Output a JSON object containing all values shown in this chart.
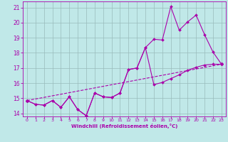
{
  "bg_color": "#c0e8e8",
  "line_color": "#aa00aa",
  "grid_color": "#99bbbb",
  "xlim": [
    -0.5,
    23.5
  ],
  "ylim": [
    13.8,
    21.4
  ],
  "xticks": [
    0,
    1,
    2,
    3,
    4,
    5,
    6,
    7,
    8,
    9,
    10,
    11,
    12,
    13,
    14,
    15,
    16,
    17,
    18,
    19,
    20,
    21,
    22,
    23
  ],
  "yticks": [
    14,
    15,
    16,
    17,
    18,
    19,
    20,
    21
  ],
  "xlabel": "Windchill (Refroidissement éolien,°C)",
  "line1_x": [
    0,
    1,
    2,
    3,
    4,
    5,
    6,
    7,
    8,
    9,
    10,
    11,
    12,
    13,
    14,
    15,
    16,
    17,
    18,
    19,
    20,
    21,
    22,
    23
  ],
  "line1_y": [
    14.85,
    14.6,
    14.55,
    14.85,
    14.4,
    15.1,
    14.25,
    13.85,
    15.35,
    15.1,
    15.05,
    15.35,
    16.9,
    17.0,
    18.35,
    18.9,
    18.85,
    21.05,
    19.5,
    20.05,
    20.5,
    19.2,
    18.05,
    17.25
  ],
  "line2_x": [
    0,
    1,
    2,
    3,
    4,
    5,
    6,
    7,
    8,
    9,
    10,
    11,
    12,
    13,
    14,
    15,
    16,
    17,
    18,
    19,
    20,
    21,
    22,
    23
  ],
  "line2_y": [
    14.85,
    14.6,
    14.55,
    14.85,
    14.4,
    15.1,
    14.25,
    13.85,
    15.35,
    15.1,
    15.05,
    15.35,
    16.9,
    17.0,
    18.35,
    15.9,
    16.05,
    16.3,
    16.55,
    16.85,
    17.05,
    17.2,
    17.25,
    17.25
  ],
  "line3_x": [
    0,
    23
  ],
  "line3_y": [
    14.85,
    17.25
  ]
}
